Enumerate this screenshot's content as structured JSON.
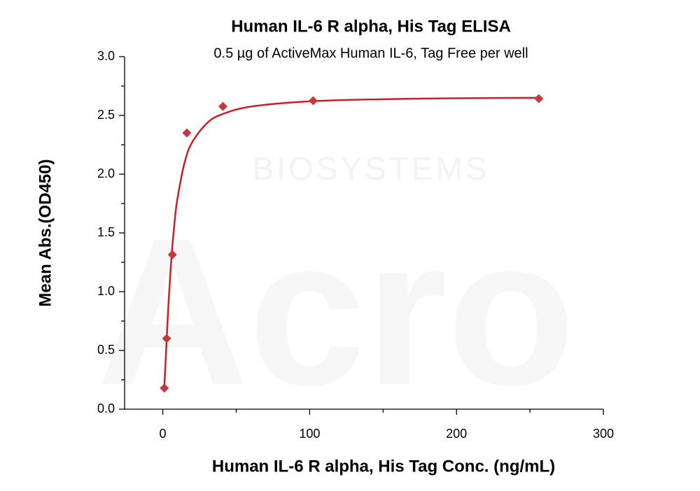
{
  "chart_data": {
    "type": "scatter",
    "title": "Human IL-6 R alpha, His Tag ELISA",
    "subtitle": "0.5 µg of ActiveMax Human IL-6, Tag Free per well",
    "xlabel": "Human IL-6 R alpha, His Tag Conc. (ng/mL)",
    "ylabel": "Mean Abs.(OD450)",
    "watermark": [
      "Acro",
      "BIOSYSTEMS"
    ],
    "series": [
      {
        "name": "Human IL-6 R alpha, His Tag",
        "color": "#c8383a",
        "x": [
          1.05,
          2.62,
          6.55,
          16.38,
          40.96,
          102.4,
          256
        ],
        "values": [
          0.179,
          0.601,
          1.315,
          2.351,
          2.577,
          2.625,
          2.643
        ]
      }
    ],
    "fit": {
      "color": "#c8202a",
      "x": [
        1,
        2,
        3,
        4,
        6,
        8,
        10,
        15,
        20,
        30,
        40,
        60,
        100,
        150,
        200,
        256
      ],
      "values": [
        0.18,
        0.429,
        0.685,
        0.921,
        1.307,
        1.589,
        1.794,
        2.106,
        2.271,
        2.433,
        2.508,
        2.575,
        2.62,
        2.638,
        2.646,
        2.65
      ]
    },
    "xlim": [
      -26,
      300
    ],
    "ylim": [
      0,
      3.0
    ],
    "xticks": [
      0,
      100,
      200,
      300
    ],
    "xminorticks": [
      50,
      150,
      250
    ],
    "yticks": [
      {
        "value": 0,
        "label": "0.0"
      },
      {
        "value": 0.5,
        "label": "0.5"
      },
      {
        "value": 1,
        "label": "1.0"
      },
      {
        "value": 1.5,
        "label": "1.5"
      },
      {
        "value": 2,
        "label": "2.0"
      },
      {
        "value": 2.5,
        "label": "2.5"
      },
      {
        "value": 3,
        "label": "3.0"
      }
    ],
    "yminorticks": [
      0.25,
      0.75,
      1.25,
      1.75,
      2.25,
      2.75
    ]
  }
}
